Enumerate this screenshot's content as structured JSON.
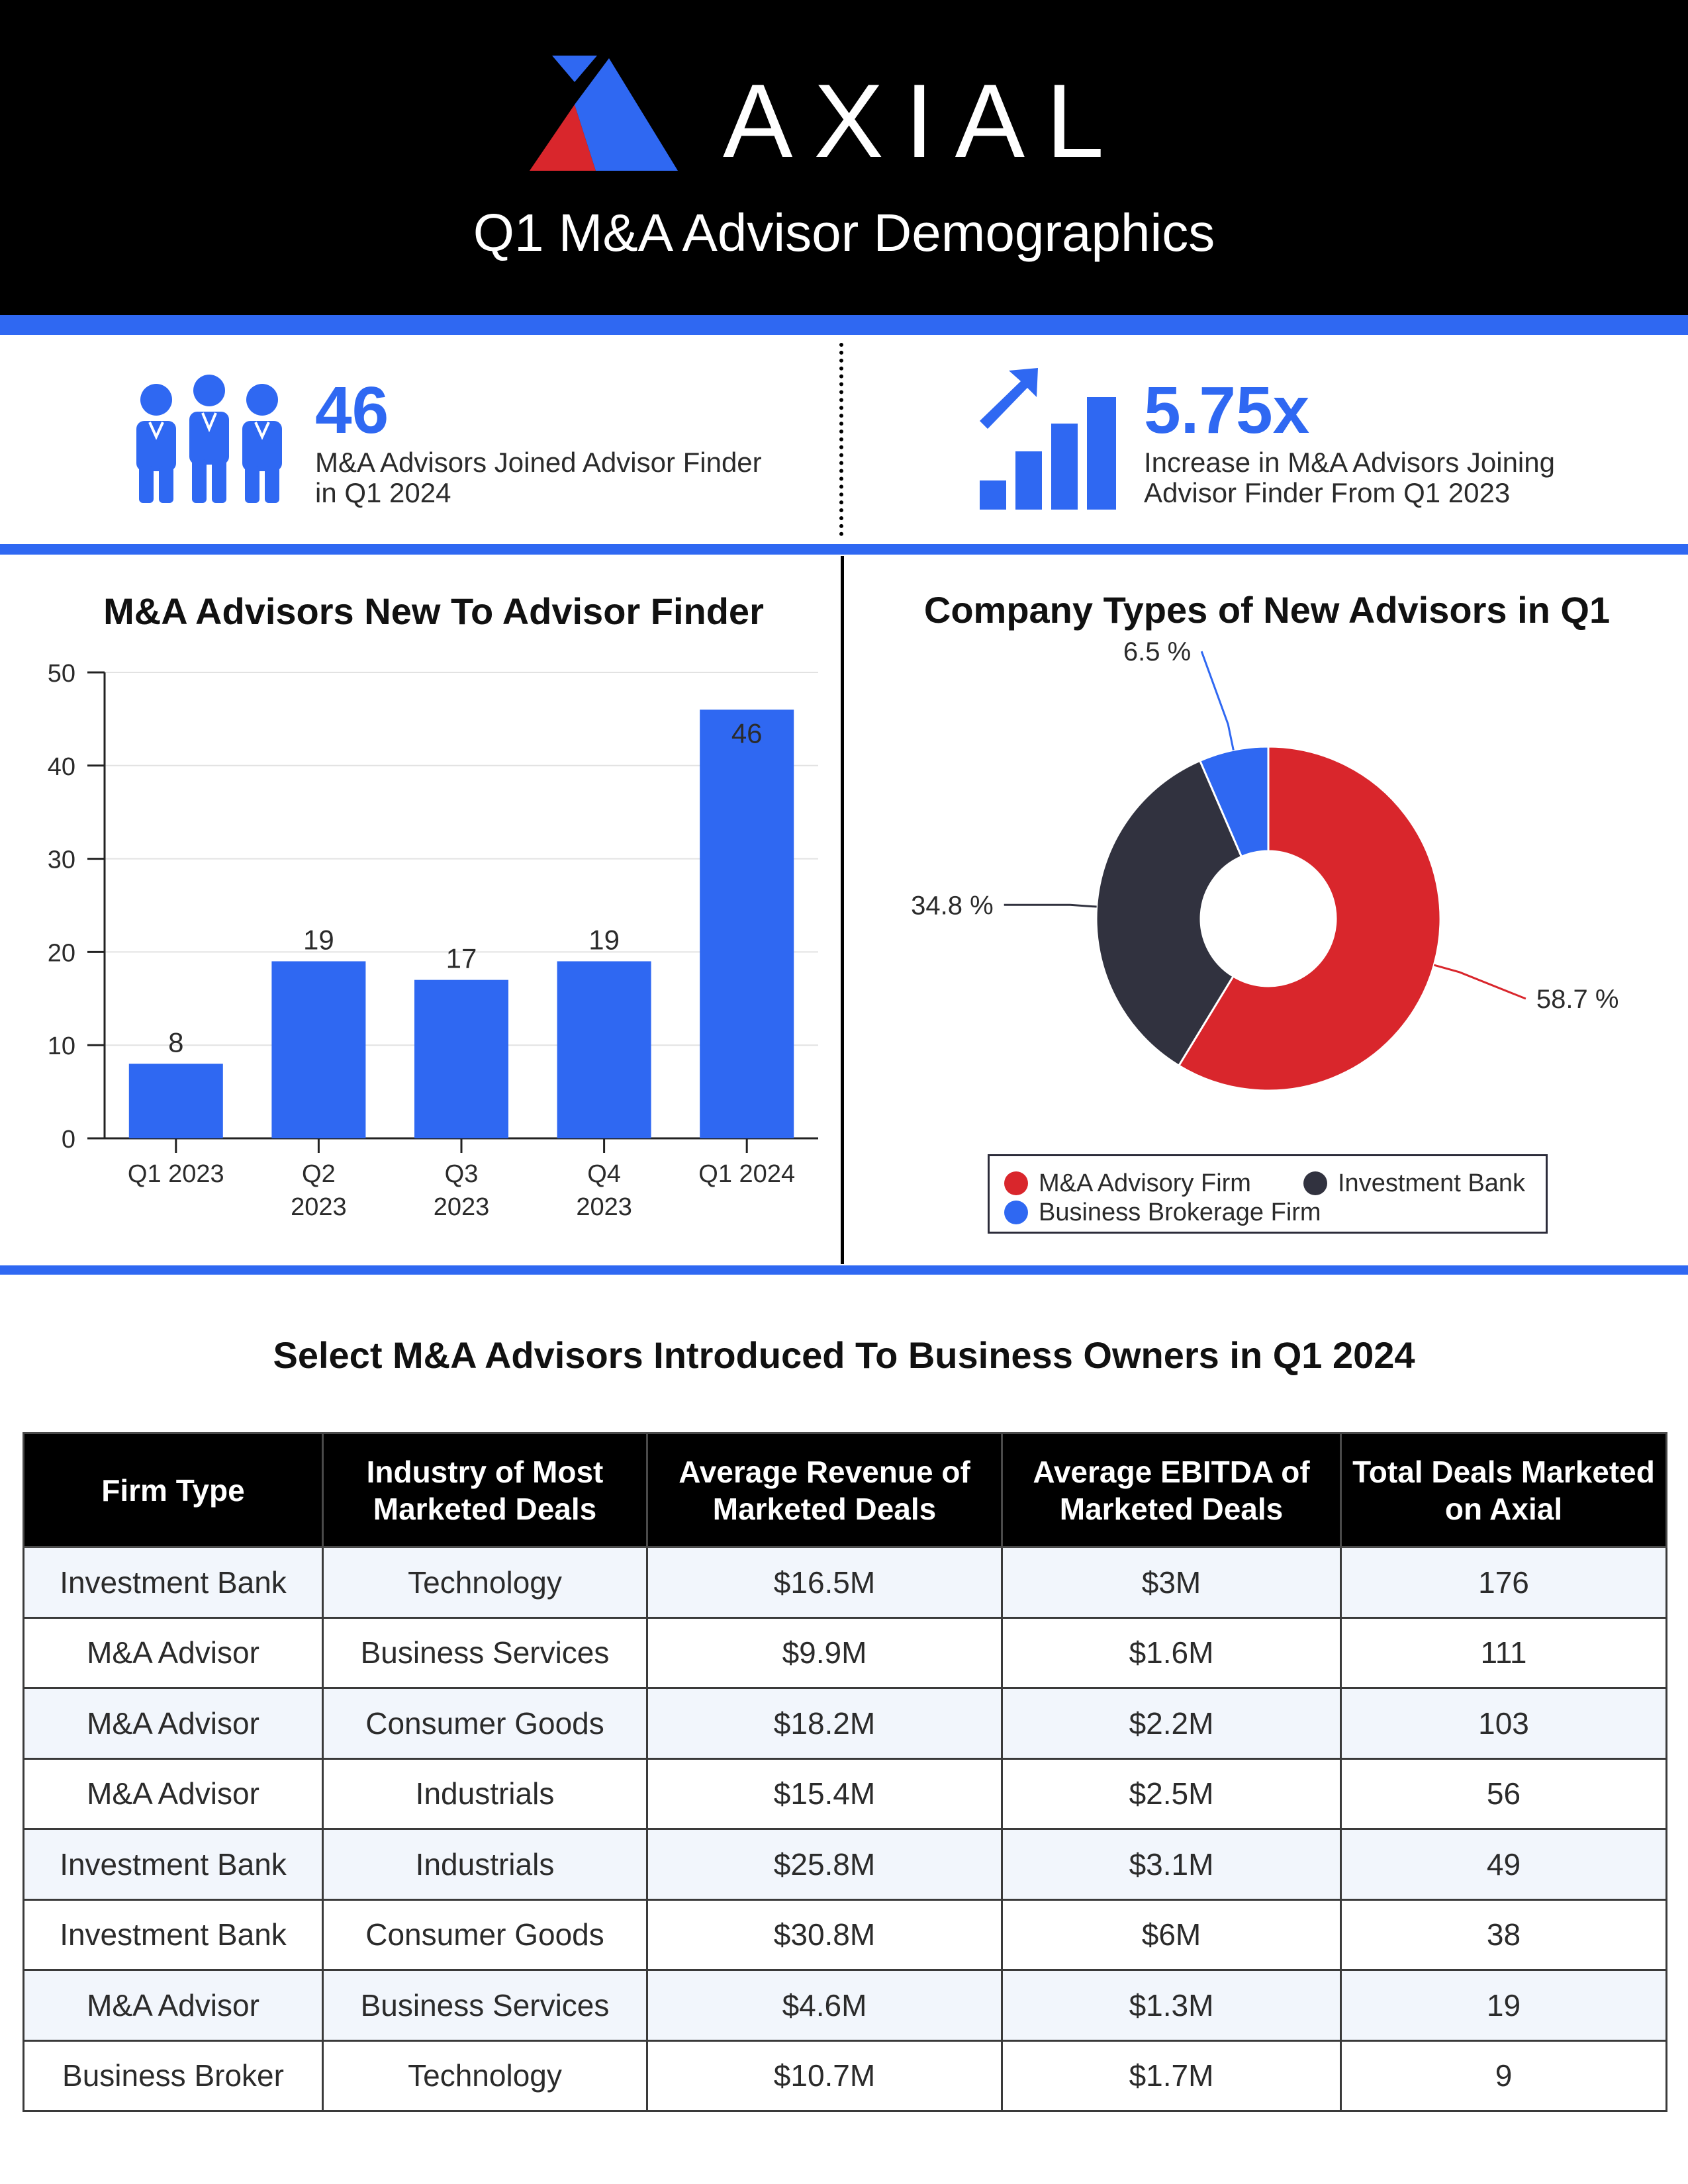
{
  "header": {
    "logo_text": "AXIAL",
    "subtitle": "Q1 M&A Advisor Demographics"
  },
  "colors": {
    "brand_blue": "#2f68f2",
    "brand_red": "#d9262c",
    "dark_navy": "#31323f",
    "black": "#000000"
  },
  "kpis": [
    {
      "icon": "people-icon",
      "value": "46",
      "caption": "M&A Advisors Joined Advisor Finder in Q1 2024"
    },
    {
      "icon": "growth-chart-icon",
      "value": "5.75x",
      "caption": "Increase in M&A Advisors Joining Advisor Finder From Q1 2023"
    }
  ],
  "chart_data": [
    {
      "type": "bar",
      "title": "M&A Advisors New To Advisor Finder",
      "categories": [
        "Q1 2023",
        "Q2 2023",
        "Q3 2023",
        "Q4 2023",
        "Q1 2024"
      ],
      "category_lines": [
        [
          "Q1 2023"
        ],
        [
          "Q2",
          "2023"
        ],
        [
          "Q3",
          "2023"
        ],
        [
          "Q4",
          "2023"
        ],
        [
          "Q1 2024"
        ]
      ],
      "values": [
        8,
        19,
        17,
        19,
        46
      ],
      "data_labels": [
        "8",
        "19",
        "17",
        "19",
        "46"
      ],
      "ylim": [
        0,
        50
      ],
      "yticks": [
        0,
        10,
        20,
        30,
        40,
        50
      ],
      "grid": true,
      "xlabel": "",
      "ylabel": "",
      "bar_color": "#2f68f2"
    },
    {
      "type": "pie",
      "title": "Company Types of New Advisors in Q1",
      "donut": true,
      "slices": [
        {
          "name": "M&A Advisory Firm",
          "value": 58.7,
          "label": "58.7 %",
          "color": "#d9262c"
        },
        {
          "name": "Investment Bank",
          "value": 34.8,
          "label": "34.8 %",
          "color": "#31323f"
        },
        {
          "name": "Business Brokerage Firm",
          "value": 6.5,
          "label": "6.5 %",
          "color": "#2f68f2"
        }
      ],
      "legend_position": "bottom"
    }
  ],
  "table": {
    "title": "Select M&A Advisors Introduced To Business Owners in Q1 2024",
    "headers": [
      "Firm Type",
      "Industry of Most Marketed Deals",
      "Average Revenue of Marketed Deals",
      "Average EBITDA of Marketed Deals",
      "Total Deals Marketed on Axial"
    ],
    "rows": [
      [
        "Investment Bank",
        "Technology",
        "$16.5M",
        "$3M",
        "176"
      ],
      [
        "M&A Advisor",
        "Business Services",
        "$9.9M",
        "$1.6M",
        "111"
      ],
      [
        "M&A Advisor",
        "Consumer Goods",
        "$18.2M",
        "$2.2M",
        "103"
      ],
      [
        "M&A Advisor",
        "Industrials",
        "$15.4M",
        "$2.5M",
        "56"
      ],
      [
        "Investment Bank",
        "Industrials",
        "$25.8M",
        "$3.1M",
        "49"
      ],
      [
        "Investment Bank",
        "Consumer Goods",
        "$30.8M",
        "$6M",
        "38"
      ],
      [
        "M&A Advisor",
        "Business Services",
        "$4.6M",
        "$1.3M",
        "19"
      ],
      [
        "Business Broker",
        "Technology",
        "$10.7M",
        "$1.7M",
        "9"
      ]
    ]
  }
}
